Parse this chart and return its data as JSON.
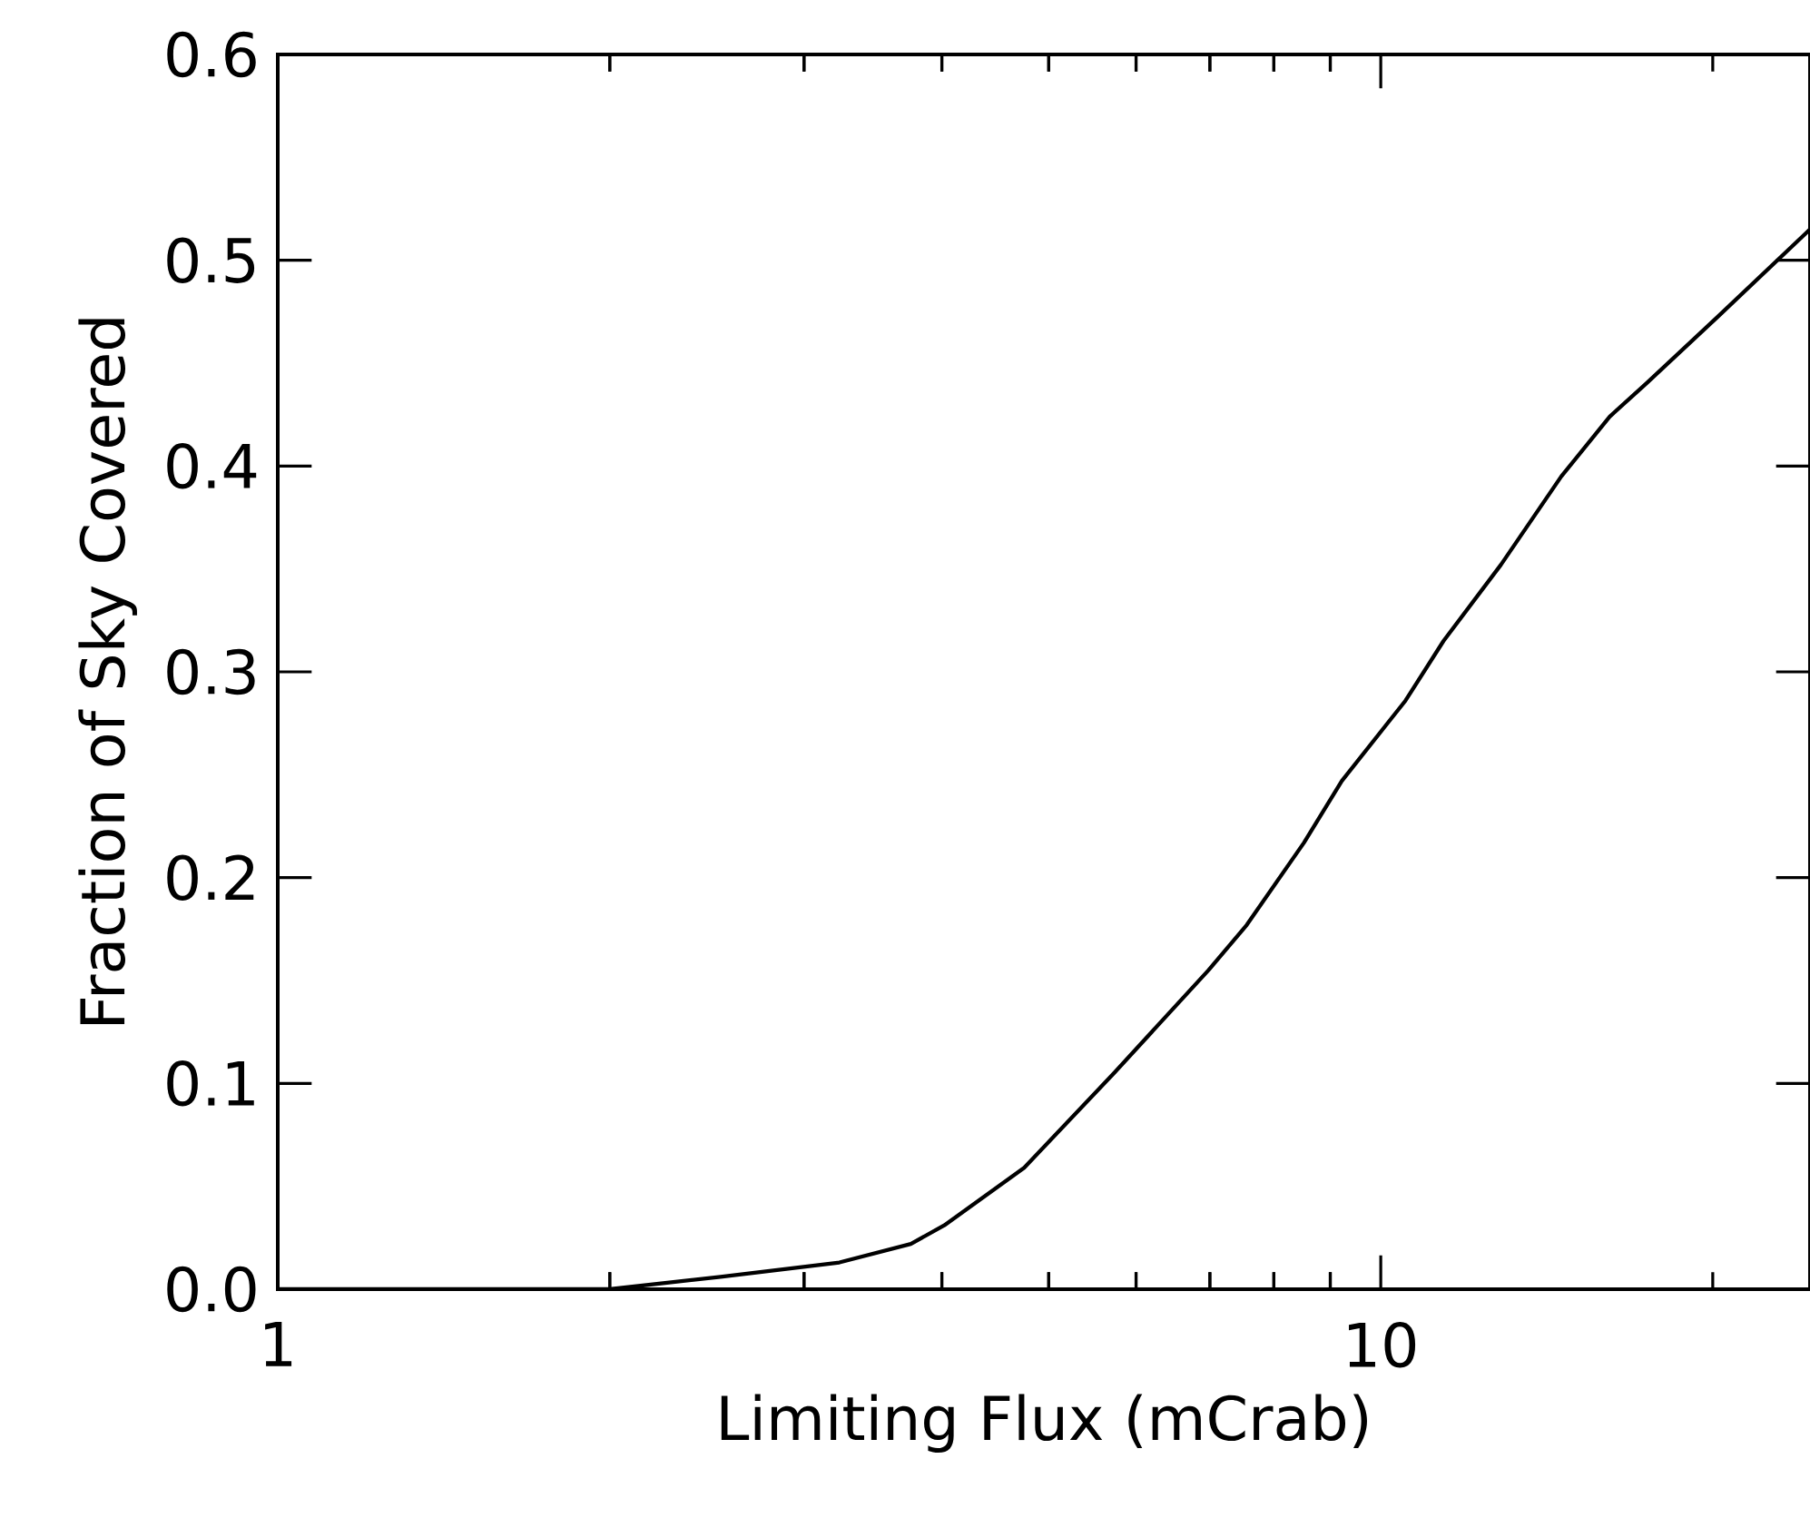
{
  "chart_data": {
    "type": "line",
    "xlabel": "Limiting Flux (mCrab)",
    "ylabel": "Fraction of Sky Covered",
    "log": "x",
    "xlim": [
      1,
      24.5
    ],
    "ylim": [
      0,
      0.6
    ],
    "xticks": [
      1,
      {
        "value": 2,
        "label": null
      },
      {
        "value": 3,
        "label": null
      },
      {
        "value": 4,
        "label": null
      },
      {
        "value": 5,
        "label": null
      },
      {
        "value": 6,
        "label": null
      },
      {
        "value": 7,
        "label": null
      },
      {
        "value": 8,
        "label": null
      },
      {
        "value": 9,
        "label": null
      },
      10,
      {
        "value": 20,
        "label": null
      }
    ],
    "yticks": [
      {
        "value": 0,
        "label": "0.0"
      },
      {
        "value": 0.1,
        "label": "0.1"
      },
      {
        "value": 0.2,
        "label": "0.2"
      },
      {
        "value": 0.3,
        "label": "0.3"
      },
      {
        "value": 0.4,
        "label": "0.4"
      },
      {
        "value": 0.5,
        "label": "0.5"
      },
      {
        "value": 0.6,
        "label": "0.6"
      }
    ],
    "grid": false,
    "marker": "none",
    "line_style": "solid",
    "series": [
      {
        "color": "#000000",
        "x": [
          1,
          2.0,
          2.52,
          3.23,
          3.75,
          4.02,
          4.75,
          5.73,
          6.98,
          7.56,
          8.52,
          9.22,
          10.53,
          11.4,
          12.85,
          14.58,
          16.13,
          17.4,
          20.25,
          24.5
        ],
        "values": [
          0,
          0,
          0.006,
          0.013,
          0.022,
          0.031,
          0.059,
          0.105,
          0.155,
          0.177,
          0.217,
          0.247,
          0.286,
          0.315,
          0.352,
          0.395,
          0.424,
          0.44,
          0.473,
          0.515
        ]
      }
    ]
  }
}
